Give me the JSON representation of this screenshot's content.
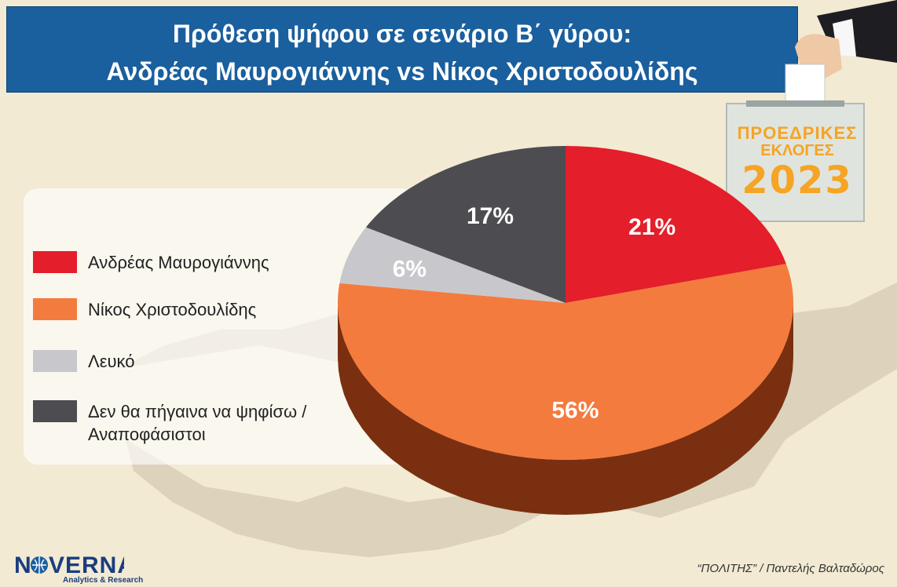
{
  "header": {
    "title_line1": "Πρόθεση ψήφου σε σενάριο Β΄ γύρου:",
    "title_line2": "Ανδρέας Μαυρογιάννης vs Νίκος Χριστοδουλίδης"
  },
  "badge": {
    "line1": "ΠΡΟΕΔΡΙΚΕΣ",
    "line2": "ΕΚΛΟΓΕΣ",
    "year": "2023"
  },
  "chart_data": {
    "type": "pie",
    "title": "Πρόθεση ψήφου σε σενάριο Β΄ γύρου: Ανδρέας Μαυρογιάννης vs Νίκος Χριστοδουλίδης",
    "categories": [
      "Ανδρέας Μαυρογιάννης",
      "Νίκος Χριστοδουλίδης",
      "Λευκό",
      "Δεν θα πήγαινα να ψηφίσω / Αναποφάσιστοι"
    ],
    "values": [
      21,
      56,
      6,
      17
    ],
    "labels": [
      "21%",
      "56%",
      "6%",
      "17%"
    ],
    "colors": [
      "#e41e2a",
      "#f47b3e",
      "#c8c8cc",
      "#4d4d51"
    ],
    "side_colors": [
      "#8a1216",
      "#7a3010",
      "#8e8e92",
      "#2a2a2c"
    ],
    "legend_position": "left"
  },
  "legend": {
    "items": [
      {
        "label": "Ανδρέας Μαυρογιάννης",
        "color": "#e41e2a"
      },
      {
        "label": "Νίκος Χριστοδουλίδης",
        "color": "#f47b3e"
      },
      {
        "label": "Λευκό",
        "color": "#c8c8cc"
      },
      {
        "label": "Δεν θα πήγαινα να ψηφίσω / Αναποφάσιστοι",
        "color": "#4d4d51"
      }
    ]
  },
  "footer": {
    "logo": "NOVERNA",
    "logo_sub": "Analytics & Research",
    "credit": "“ΠΟΛΙΤΗΣ” / Παντελής Βαλταδώρος"
  }
}
